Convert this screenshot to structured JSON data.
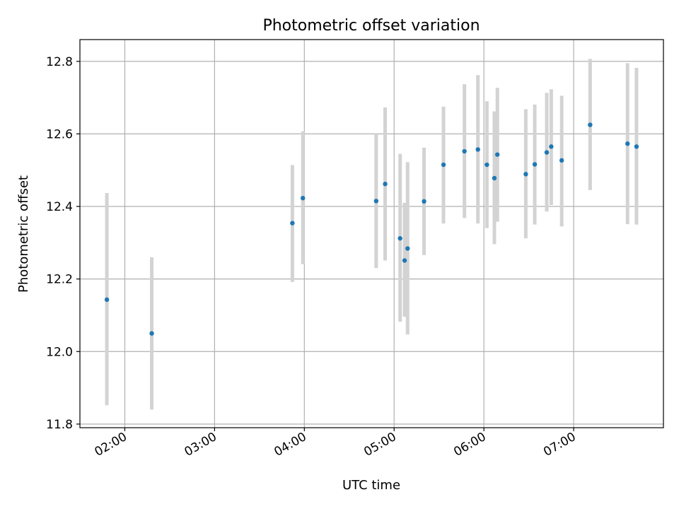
{
  "chart_data": {
    "type": "scatter",
    "title": "Photometric offset variation",
    "xlabel": "UTC time",
    "ylabel": "Photometric offset",
    "x_is_time": true,
    "xlim": [
      "01:30",
      "08:00"
    ],
    "ylim": [
      11.79,
      12.86
    ],
    "x_ticks": [
      "02:00",
      "03:00",
      "04:00",
      "05:00",
      "06:00",
      "07:00"
    ],
    "y_ticks": [
      11.8,
      12.0,
      12.2,
      12.4,
      12.6,
      12.8
    ],
    "y_tick_labels": [
      "11.8",
      "12.0",
      "12.2",
      "12.4",
      "12.6",
      "12.8"
    ],
    "grid": true,
    "point_color": "#1f77b4",
    "errorbar_color": "#d3d3d3",
    "points": [
      {
        "time": "01:48",
        "y": 12.143,
        "low": 11.852,
        "high": 12.437
      },
      {
        "time": "02:18",
        "y": 12.05,
        "low": 11.84,
        "high": 12.26
      },
      {
        "time": "03:52",
        "y": 12.354,
        "low": 12.192,
        "high": 12.514
      },
      {
        "time": "03:59",
        "y": 12.423,
        "low": 12.241,
        "high": 12.607
      },
      {
        "time": "04:48",
        "y": 12.415,
        "low": 12.23,
        "high": 12.6
      },
      {
        "time": "04:54",
        "y": 12.462,
        "low": 12.251,
        "high": 12.673
      },
      {
        "time": "05:04",
        "y": 12.312,
        "low": 12.082,
        "high": 12.545
      },
      {
        "time": "05:07",
        "y": 12.251,
        "low": 12.096,
        "high": 12.41
      },
      {
        "time": "05:09",
        "y": 12.284,
        "low": 12.047,
        "high": 12.522
      },
      {
        "time": "05:20",
        "y": 12.414,
        "low": 12.266,
        "high": 12.562
      },
      {
        "time": "05:33",
        "y": 12.515,
        "low": 12.353,
        "high": 12.675
      },
      {
        "time": "05:47",
        "y": 12.552,
        "low": 12.368,
        "high": 12.737
      },
      {
        "time": "05:56",
        "y": 12.557,
        "low": 12.353,
        "high": 12.762
      },
      {
        "time": "06:02",
        "y": 12.515,
        "low": 12.34,
        "high": 12.69
      },
      {
        "time": "06:07",
        "y": 12.478,
        "low": 12.296,
        "high": 12.662
      },
      {
        "time": "06:09",
        "y": 12.543,
        "low": 12.358,
        "high": 12.727
      },
      {
        "time": "06:28",
        "y": 12.489,
        "low": 12.312,
        "high": 12.668
      },
      {
        "time": "06:34",
        "y": 12.516,
        "low": 12.35,
        "high": 12.681
      },
      {
        "time": "06:42",
        "y": 12.549,
        "low": 12.386,
        "high": 12.713
      },
      {
        "time": "06:45",
        "y": 12.565,
        "low": 12.404,
        "high": 12.723
      },
      {
        "time": "06:52",
        "y": 12.527,
        "low": 12.345,
        "high": 12.705
      },
      {
        "time": "07:11",
        "y": 12.625,
        "low": 12.445,
        "high": 12.807
      },
      {
        "time": "07:36",
        "y": 12.573,
        "low": 12.351,
        "high": 12.795
      },
      {
        "time": "07:42",
        "y": 12.565,
        "low": 12.35,
        "high": 12.782
      }
    ]
  }
}
